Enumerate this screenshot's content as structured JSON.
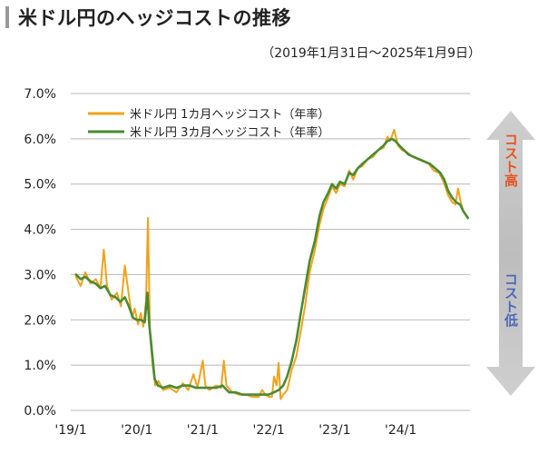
{
  "header": {
    "title": "米ドル円のヘッジコストの推移",
    "subtitle": "（2019年1月31日～2025年1月9日）"
  },
  "side_arrow": {
    "top_label": "コスト高",
    "bottom_label": "コスト低",
    "top_color": "#e8521f",
    "bottom_color": "#4a6ab8"
  },
  "chart_data": {
    "type": "line",
    "title": "米ドル円のヘッジコストの推移",
    "xlabel": "",
    "ylabel": "",
    "ylim": [
      0,
      7
    ],
    "xlim": [
      2019.0,
      2025.05
    ],
    "yticks": [
      0,
      1,
      2,
      3,
      4,
      5,
      6,
      7
    ],
    "ytick_labels": [
      "0.0%",
      "1.0%",
      "2.0%",
      "3.0%",
      "4.0%",
      "5.0%",
      "6.0%",
      "7.0%"
    ],
    "xticks": [
      2019.0,
      2020.0,
      2021.0,
      2022.0,
      2023.0,
      2024.0
    ],
    "xtick_labels": [
      "'19/1",
      "'20/1",
      "'21/1",
      "'22/1",
      "'23/1",
      "'24/1"
    ],
    "grid": true,
    "legend": "top-left",
    "series": [
      {
        "name": "米ドル円 1カ月ヘッジコスト（年率）",
        "color": "#f0a21a",
        "points": [
          [
            2019.08,
            2.95
          ],
          [
            2019.15,
            2.75
          ],
          [
            2019.22,
            3.05
          ],
          [
            2019.3,
            2.8
          ],
          [
            2019.38,
            2.9
          ],
          [
            2019.45,
            2.7
          ],
          [
            2019.5,
            3.55
          ],
          [
            2019.55,
            2.75
          ],
          [
            2019.62,
            2.45
          ],
          [
            2019.7,
            2.6
          ],
          [
            2019.76,
            2.3
          ],
          [
            2019.82,
            3.2
          ],
          [
            2019.88,
            2.55
          ],
          [
            2019.93,
            2.05
          ],
          [
            2019.97,
            2.25
          ],
          [
            2020.02,
            1.9
          ],
          [
            2020.06,
            2.15
          ],
          [
            2020.1,
            1.85
          ],
          [
            2020.14,
            2.4
          ],
          [
            2020.17,
            4.25
          ],
          [
            2020.2,
            1.7
          ],
          [
            2020.24,
            1.0
          ],
          [
            2020.28,
            0.55
          ],
          [
            2020.33,
            0.65
          ],
          [
            2020.4,
            0.45
          ],
          [
            2020.5,
            0.5
          ],
          [
            2020.6,
            0.4
          ],
          [
            2020.7,
            0.6
          ],
          [
            2020.78,
            0.45
          ],
          [
            2020.86,
            0.8
          ],
          [
            2020.92,
            0.5
          ],
          [
            2021.0,
            1.1
          ],
          [
            2021.04,
            0.55
          ],
          [
            2021.1,
            0.45
          ],
          [
            2021.2,
            0.55
          ],
          [
            2021.28,
            0.5
          ],
          [
            2021.32,
            1.1
          ],
          [
            2021.36,
            0.55
          ],
          [
            2021.45,
            0.4
          ],
          [
            2021.55,
            0.35
          ],
          [
            2021.65,
            0.35
          ],
          [
            2021.75,
            0.3
          ],
          [
            2021.85,
            0.3
          ],
          [
            2021.9,
            0.45
          ],
          [
            2021.95,
            0.35
          ],
          [
            2022.0,
            0.3
          ],
          [
            2022.05,
            0.3
          ],
          [
            2022.08,
            0.75
          ],
          [
            2022.12,
            0.55
          ],
          [
            2022.15,
            1.05
          ],
          [
            2022.18,
            0.25
          ],
          [
            2022.22,
            0.35
          ],
          [
            2022.28,
            0.45
          ],
          [
            2022.35,
            0.9
          ],
          [
            2022.42,
            1.2
          ],
          [
            2022.48,
            1.7
          ],
          [
            2022.55,
            2.3
          ],
          [
            2022.62,
            3.05
          ],
          [
            2022.7,
            3.55
          ],
          [
            2022.77,
            4.1
          ],
          [
            2022.83,
            4.45
          ],
          [
            2022.9,
            4.7
          ],
          [
            2022.96,
            4.95
          ],
          [
            2023.02,
            4.8
          ],
          [
            2023.08,
            5.0
          ],
          [
            2023.15,
            4.95
          ],
          [
            2023.22,
            5.3
          ],
          [
            2023.28,
            5.1
          ],
          [
            2023.35,
            5.35
          ],
          [
            2023.42,
            5.4
          ],
          [
            2023.5,
            5.55
          ],
          [
            2023.58,
            5.6
          ],
          [
            2023.66,
            5.75
          ],
          [
            2023.74,
            5.8
          ],
          [
            2023.8,
            6.05
          ],
          [
            2023.84,
            5.95
          ],
          [
            2023.9,
            6.2
          ],
          [
            2023.96,
            5.85
          ],
          [
            2024.02,
            5.75
          ],
          [
            2024.1,
            5.7
          ],
          [
            2024.18,
            5.6
          ],
          [
            2024.26,
            5.55
          ],
          [
            2024.34,
            5.5
          ],
          [
            2024.42,
            5.45
          ],
          [
            2024.5,
            5.3
          ],
          [
            2024.58,
            5.25
          ],
          [
            2024.65,
            5.05
          ],
          [
            2024.72,
            4.75
          ],
          [
            2024.78,
            4.6
          ],
          [
            2024.83,
            4.55
          ],
          [
            2024.87,
            4.9
          ],
          [
            2024.91,
            4.6
          ],
          [
            2024.95,
            4.4
          ],
          [
            2025.02,
            4.25
          ]
        ]
      },
      {
        "name": "米ドル円 3カ月ヘッジコスト（年率）",
        "color": "#4a8a32",
        "points": [
          [
            2019.08,
            3.0
          ],
          [
            2019.15,
            2.9
          ],
          [
            2019.22,
            2.95
          ],
          [
            2019.3,
            2.85
          ],
          [
            2019.38,
            2.8
          ],
          [
            2019.45,
            2.7
          ],
          [
            2019.52,
            2.75
          ],
          [
            2019.6,
            2.55
          ],
          [
            2019.68,
            2.5
          ],
          [
            2019.75,
            2.4
          ],
          [
            2019.82,
            2.5
          ],
          [
            2019.88,
            2.3
          ],
          [
            2019.94,
            2.05
          ],
          [
            2020.0,
            2.0
          ],
          [
            2020.06,
            2.0
          ],
          [
            2020.12,
            1.95
          ],
          [
            2020.16,
            2.6
          ],
          [
            2020.19,
            1.9
          ],
          [
            2020.23,
            1.3
          ],
          [
            2020.27,
            0.7
          ],
          [
            2020.32,
            0.55
          ],
          [
            2020.4,
            0.5
          ],
          [
            2020.5,
            0.55
          ],
          [
            2020.6,
            0.5
          ],
          [
            2020.7,
            0.55
          ],
          [
            2020.8,
            0.55
          ],
          [
            2020.9,
            0.5
          ],
          [
            2021.0,
            0.5
          ],
          [
            2021.1,
            0.5
          ],
          [
            2021.2,
            0.5
          ],
          [
            2021.3,
            0.55
          ],
          [
            2021.4,
            0.4
          ],
          [
            2021.5,
            0.4
          ],
          [
            2021.6,
            0.35
          ],
          [
            2021.7,
            0.35
          ],
          [
            2021.8,
            0.35
          ],
          [
            2021.9,
            0.35
          ],
          [
            2022.0,
            0.35
          ],
          [
            2022.08,
            0.4
          ],
          [
            2022.15,
            0.45
          ],
          [
            2022.22,
            0.55
          ],
          [
            2022.28,
            0.75
          ],
          [
            2022.35,
            1.1
          ],
          [
            2022.42,
            1.55
          ],
          [
            2022.48,
            2.1
          ],
          [
            2022.55,
            2.7
          ],
          [
            2022.62,
            3.3
          ],
          [
            2022.7,
            3.75
          ],
          [
            2022.77,
            4.3
          ],
          [
            2022.83,
            4.6
          ],
          [
            2022.9,
            4.8
          ],
          [
            2022.96,
            5.0
          ],
          [
            2023.02,
            4.9
          ],
          [
            2023.08,
            5.05
          ],
          [
            2023.15,
            5.0
          ],
          [
            2023.22,
            5.25
          ],
          [
            2023.28,
            5.2
          ],
          [
            2023.35,
            5.35
          ],
          [
            2023.42,
            5.45
          ],
          [
            2023.5,
            5.55
          ],
          [
            2023.58,
            5.65
          ],
          [
            2023.66,
            5.75
          ],
          [
            2023.74,
            5.85
          ],
          [
            2023.8,
            5.95
          ],
          [
            2023.86,
            6.0
          ],
          [
            2023.92,
            5.95
          ],
          [
            2023.98,
            5.85
          ],
          [
            2024.05,
            5.75
          ],
          [
            2024.12,
            5.65
          ],
          [
            2024.2,
            5.6
          ],
          [
            2024.28,
            5.55
          ],
          [
            2024.36,
            5.5
          ],
          [
            2024.44,
            5.45
          ],
          [
            2024.52,
            5.35
          ],
          [
            2024.6,
            5.25
          ],
          [
            2024.66,
            5.1
          ],
          [
            2024.72,
            4.85
          ],
          [
            2024.78,
            4.7
          ],
          [
            2024.84,
            4.6
          ],
          [
            2024.9,
            4.55
          ],
          [
            2024.95,
            4.4
          ],
          [
            2025.02,
            4.25
          ]
        ]
      }
    ]
  }
}
